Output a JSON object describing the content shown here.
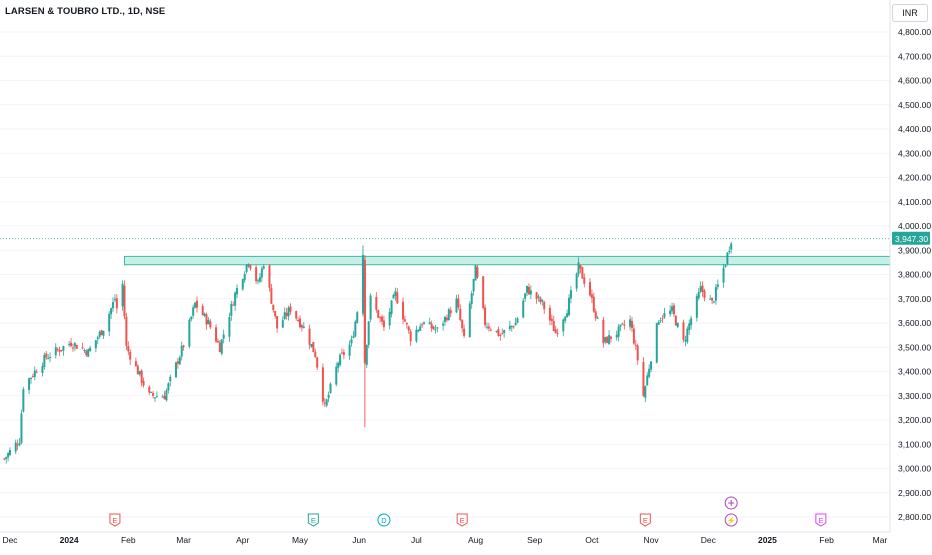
{
  "header": {
    "symbol_title": "LARSEN & TOUBRO LTD., 1D, NSE",
    "currency": "INR"
  },
  "colors": {
    "up": "#26a69a",
    "down": "#ef5350",
    "zone_fill": "#b2ebde",
    "zone_stroke": "#26a69a",
    "price_line": "#26a69a",
    "axis_text": "#131722",
    "grid": "#f0f3fa"
  },
  "events": [
    {
      "label": "E",
      "date": "2024-01-25",
      "kind": "earnings",
      "color": "#ef5350"
    },
    {
      "label": "E",
      "date": "2024-05-08",
      "kind": "earnings",
      "color": "#26a69a"
    },
    {
      "label": "D",
      "date": "2024-06-14",
      "kind": "dividend",
      "color": "#00acc1"
    },
    {
      "label": "E",
      "date": "2024-07-25",
      "kind": "earnings",
      "color": "#ef5350"
    },
    {
      "label": "E",
      "date": "2024-10-29",
      "kind": "earnings",
      "color": "#ef5350"
    },
    {
      "label": "⚡",
      "date": "2024-12-13",
      "kind": "split",
      "color": "#ab47bc"
    },
    {
      "label": "E",
      "date": "2025-01-29",
      "kind": "earnings",
      "color": "#e040fb"
    }
  ],
  "chart_data": {
    "type": "candlestick",
    "title": "LARSEN & TOUBRO LTD., 1D, NSE",
    "ylabel": "INR",
    "ylim": [
      2750,
      4950
    ],
    "y_scale": "linear",
    "grid": true,
    "y_ticks": [
      "4,800.00",
      "4,700.00",
      "4,600.00",
      "4,500.00",
      "4,400.00",
      "4,300.00",
      "4,200.00",
      "4,100.00",
      "4,000.00",
      "3,900.00",
      "3,800.00",
      "3,700.00",
      "3,600.00",
      "3,500.00",
      "3,400.00",
      "3,300.00",
      "3,200.00",
      "3,100.00",
      "3,000.00",
      "2,900.00",
      "2,800.00"
    ],
    "x_ticks": [
      "Dec",
      "2024",
      "Feb",
      "Mar",
      "Apr",
      "May",
      "Jun",
      "Jul",
      "Aug",
      "Sep",
      "Oct",
      "Nov",
      "Dec",
      "2025",
      "Feb",
      "Mar"
    ],
    "last_price": "3,947.30",
    "last_price_value": 3947.3,
    "resistance_zone": {
      "from_date": "2024-01-30",
      "top": 3875,
      "bottom": 3840
    },
    "path_points": [
      {
        "date": "2023-11-28",
        "price": 3040
      },
      {
        "date": "2023-12-06",
        "price": 3120
      },
      {
        "date": "2023-12-08",
        "price": 3340
      },
      {
        "date": "2023-12-20",
        "price": 3460
      },
      {
        "date": "2024-01-02",
        "price": 3520
      },
      {
        "date": "2024-01-11",
        "price": 3480
      },
      {
        "date": "2024-01-19",
        "price": 3580
      },
      {
        "date": "2024-01-25",
        "price": 3700
      },
      {
        "date": "2024-01-26",
        "price": 3660
      },
      {
        "date": "2024-01-29",
        "price": 3760
      },
      {
        "date": "2024-01-31",
        "price": 3500
      },
      {
        "date": "2024-02-12",
        "price": 3300
      },
      {
        "date": "2024-02-20",
        "price": 3300
      },
      {
        "date": "2024-03-01",
        "price": 3510
      },
      {
        "date": "2024-03-07",
        "price": 3680
      },
      {
        "date": "2024-03-14",
        "price": 3600
      },
      {
        "date": "2024-03-20",
        "price": 3500
      },
      {
        "date": "2024-03-28",
        "price": 3720
      },
      {
        "date": "2024-04-04",
        "price": 3860
      },
      {
        "date": "2024-04-09",
        "price": 3760
      },
      {
        "date": "2024-04-12",
        "price": 3850
      },
      {
        "date": "2024-04-19",
        "price": 3580
      },
      {
        "date": "2024-04-26",
        "price": 3660
      },
      {
        "date": "2024-05-03",
        "price": 3580
      },
      {
        "date": "2024-05-09",
        "price": 3470
      },
      {
        "date": "2024-05-14",
        "price": 3250
      },
      {
        "date": "2024-05-21",
        "price": 3440
      },
      {
        "date": "2024-05-28",
        "price": 3520
      },
      {
        "date": "2024-05-31",
        "price": 3650
      },
      {
        "date": "2024-06-03",
        "price": 3880
      },
      {
        "date": "2024-06-04",
        "price": 3440
      },
      {
        "date": "2024-06-07",
        "price": 3700
      },
      {
        "date": "2024-06-14",
        "price": 3580
      },
      {
        "date": "2024-06-20",
        "price": 3720
      },
      {
        "date": "2024-06-28",
        "price": 3540
      },
      {
        "date": "2024-07-04",
        "price": 3600
      },
      {
        "date": "2024-07-12",
        "price": 3570
      },
      {
        "date": "2024-07-22",
        "price": 3690
      },
      {
        "date": "2024-07-26",
        "price": 3530
      },
      {
        "date": "2024-08-01",
        "price": 3820
      },
      {
        "date": "2024-08-06",
        "price": 3600
      },
      {
        "date": "2024-08-14",
        "price": 3550
      },
      {
        "date": "2024-08-22",
        "price": 3600
      },
      {
        "date": "2024-08-28",
        "price": 3740
      },
      {
        "date": "2024-09-05",
        "price": 3680
      },
      {
        "date": "2024-09-12",
        "price": 3560
      },
      {
        "date": "2024-09-18",
        "price": 3660
      },
      {
        "date": "2024-09-24",
        "price": 3830
      },
      {
        "date": "2024-09-30",
        "price": 3720
      },
      {
        "date": "2024-10-07",
        "price": 3520
      },
      {
        "date": "2024-10-14",
        "price": 3560
      },
      {
        "date": "2024-10-21",
        "price": 3610
      },
      {
        "date": "2024-10-25",
        "price": 3450
      },
      {
        "date": "2024-10-28",
        "price": 3300
      },
      {
        "date": "2024-10-31",
        "price": 3420
      },
      {
        "date": "2024-11-05",
        "price": 3620
      },
      {
        "date": "2024-11-12",
        "price": 3650
      },
      {
        "date": "2024-11-18",
        "price": 3520
      },
      {
        "date": "2024-11-22",
        "price": 3620
      },
      {
        "date": "2024-11-27",
        "price": 3740
      },
      {
        "date": "2024-12-03",
        "price": 3680
      },
      {
        "date": "2024-12-10",
        "price": 3850
      },
      {
        "date": "2024-12-13",
        "price": 3947
      }
    ]
  }
}
